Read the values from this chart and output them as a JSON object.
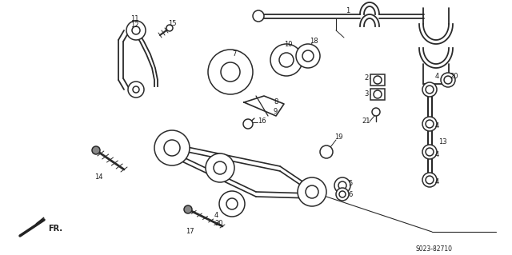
{
  "bg_color": "#ffffff",
  "line_color": "#2a2a2a",
  "text_color": "#1a1a1a",
  "figsize": [
    6.4,
    3.19
  ],
  "dpi": 100,
  "diagram_ref": "S023-82710"
}
